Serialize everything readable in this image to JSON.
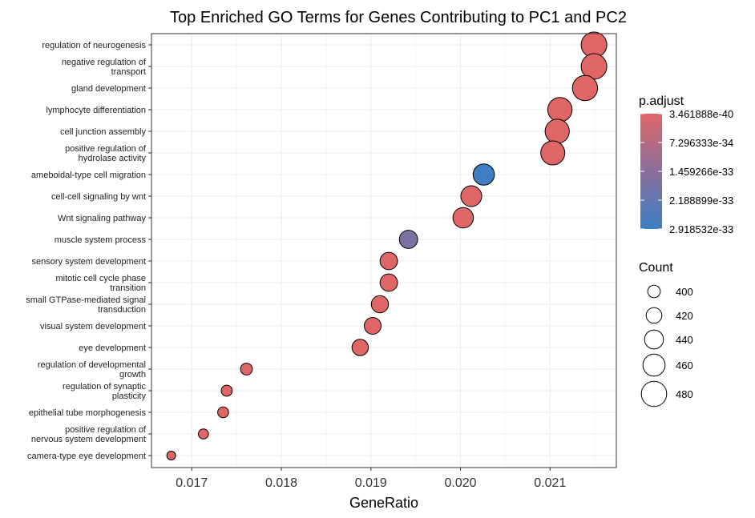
{
  "chart_data": {
    "type": "scatter",
    "title": "Top Enriched GO Terms for Genes Contributing to PC1 and PC2",
    "xlabel": "GeneRatio",
    "xlim": [
      0.01655,
      0.02174
    ],
    "xticks": [
      "0.017",
      "0.018",
      "0.019",
      "0.020",
      "0.021"
    ],
    "xtick_values": [
      0.017,
      0.018,
      0.019,
      0.02,
      0.021
    ],
    "grid": true,
    "legend_placement": "right",
    "size_legend": {
      "title": "Count",
      "values": [
        400,
        420,
        440,
        460,
        480
      ],
      "labels": [
        "400",
        "420",
        "440",
        "460",
        "480"
      ]
    },
    "color_legend": {
      "title": "p.adjust",
      "labels": [
        "3.461888e-40",
        "7.296333e-34",
        "1.459266e-33",
        "2.188899e-33",
        "2.918532e-33"
      ],
      "low_color": "#e06666",
      "high_color": "#3c7fc2"
    },
    "terms": [
      {
        "label": [
          "regulation of neurogenesis"
        ],
        "gene_ratio": 0.02149,
        "count": 482,
        "p_adjust": 3.5e-40
      },
      {
        "label": [
          "negative regulation of",
          "transport"
        ],
        "gene_ratio": 0.02149,
        "count": 482,
        "p_adjust": 1e-38
      },
      {
        "label": [
          "gland development"
        ],
        "gene_ratio": 0.02139,
        "count": 479,
        "p_adjust": 1e-37
      },
      {
        "label": [
          "lymphocyte differentiation"
        ],
        "gene_ratio": 0.02111,
        "count": 474,
        "p_adjust": 1e-36
      },
      {
        "label": [
          "cell junction assembly"
        ],
        "gene_ratio": 0.02108,
        "count": 473,
        "p_adjust": 1e-36
      },
      {
        "label": [
          "positive regulation of",
          "hydrolase activity"
        ],
        "gene_ratio": 0.02103,
        "count": 472,
        "p_adjust": 1e-35
      },
      {
        "label": [
          "ameboidal-type cell migration"
        ],
        "gene_ratio": 0.02026,
        "count": 455,
        "p_adjust": 2.9e-33
      },
      {
        "label": [
          "cell-cell signaling by wnt"
        ],
        "gene_ratio": 0.02012,
        "count": 452,
        "p_adjust": 1e-35
      },
      {
        "label": [
          "Wnt signaling pathway"
        ],
        "gene_ratio": 0.02003,
        "count": 450,
        "p_adjust": 1e-35
      },
      {
        "label": [
          "muscle system process"
        ],
        "gene_ratio": 0.01942,
        "count": 436,
        "p_adjust": 1.7e-33
      },
      {
        "label": [
          "sensory system development"
        ],
        "gene_ratio": 0.0192,
        "count": 431,
        "p_adjust": 1e-35
      },
      {
        "label": [
          "mitotic cell cycle phase",
          "transition"
        ],
        "gene_ratio": 0.0192,
        "count": 431,
        "p_adjust": 1e-35
      },
      {
        "label": [
          "small GTPase-mediated signal",
          "transduction"
        ],
        "gene_ratio": 0.0191,
        "count": 429,
        "p_adjust": 1e-35
      },
      {
        "label": [
          "visual system development"
        ],
        "gene_ratio": 0.01902,
        "count": 427,
        "p_adjust": 1e-35
      },
      {
        "label": [
          "eye development"
        ],
        "gene_ratio": 0.01888,
        "count": 424,
        "p_adjust": 1e-35
      },
      {
        "label": [
          "regulation of developmental",
          "growth"
        ],
        "gene_ratio": 0.01761,
        "count": 396,
        "p_adjust": 1e-35
      },
      {
        "label": [
          "regulation of synaptic",
          "plasticity"
        ],
        "gene_ratio": 0.01739,
        "count": 391,
        "p_adjust": 1e-35
      },
      {
        "label": [
          "epithelial tube morphogenesis"
        ],
        "gene_ratio": 0.01735,
        "count": 390,
        "p_adjust": 1e-35
      },
      {
        "label": [
          "positive regulation of",
          "nervous system development"
        ],
        "gene_ratio": 0.01713,
        "count": 385,
        "p_adjust": 1e-35
      },
      {
        "label": [
          "camera-type eye development"
        ],
        "gene_ratio": 0.01677,
        "count": 377,
        "p_adjust": 1e-35
      }
    ]
  }
}
